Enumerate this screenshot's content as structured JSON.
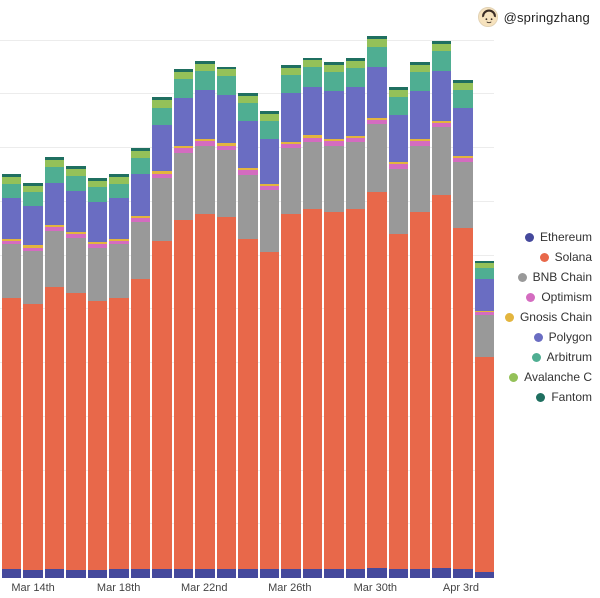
{
  "header": {
    "handle": "@springzhang"
  },
  "chart_data": {
    "type": "bar",
    "stacked": true,
    "title": "",
    "xlabel": "",
    "ylabel": "",
    "grid": true,
    "legend_position": "right",
    "ylim": [
      0,
      1.02
    ],
    "note": "y-axis has no tick labels in the source image; segment values are normalized to full chart height = 1.0",
    "categories": [
      "Mar 13",
      "Mar 14",
      "Mar 15",
      "Mar 16",
      "Mar 17",
      "Mar 18",
      "Mar 19",
      "Mar 20",
      "Mar 21",
      "Mar 22",
      "Mar 23",
      "Mar 24",
      "Mar 25",
      "Mar 26",
      "Mar 27",
      "Mar 28",
      "Mar 29",
      "Mar 30",
      "Mar 31",
      "Apr 1",
      "Apr 2",
      "Apr 3",
      "Apr 4"
    ],
    "x_tick_labels": [
      {
        "index": 1,
        "label": "Mar 14th"
      },
      {
        "index": 5,
        "label": "Mar 18th"
      },
      {
        "index": 9,
        "label": "Mar 22nd"
      },
      {
        "index": 13,
        "label": "Mar 26th"
      },
      {
        "index": 17,
        "label": "Mar 30th"
      },
      {
        "index": 21,
        "label": "Apr 3rd"
      }
    ],
    "series": [
      {
        "name": "Ethereum",
        "color": "#45499c",
        "values": [
          0.016,
          0.015,
          0.016,
          0.015,
          0.015,
          0.016,
          0.016,
          0.017,
          0.017,
          0.017,
          0.017,
          0.016,
          0.016,
          0.017,
          0.017,
          0.017,
          0.017,
          0.018,
          0.016,
          0.017,
          0.018,
          0.017,
          0.012
        ]
      },
      {
        "name": "Solana",
        "color": "#e8684a",
        "values": [
          0.505,
          0.495,
          0.525,
          0.515,
          0.5,
          0.505,
          0.54,
          0.61,
          0.65,
          0.66,
          0.655,
          0.615,
          0.59,
          0.66,
          0.67,
          0.665,
          0.67,
          0.7,
          0.625,
          0.665,
          0.695,
          0.635,
          0.4
        ]
      },
      {
        "name": "BNB Chain",
        "color": "#999999",
        "values": [
          0.1,
          0.098,
          0.105,
          0.103,
          0.1,
          0.1,
          0.106,
          0.118,
          0.125,
          0.127,
          0.125,
          0.12,
          0.116,
          0.123,
          0.124,
          0.123,
          0.124,
          0.127,
          0.121,
          0.123,
          0.126,
          0.122,
          0.078
        ]
      },
      {
        "name": "Optimism",
        "color": "#d46cc0",
        "values": [
          0.007,
          0.007,
          0.008,
          0.007,
          0.007,
          0.007,
          0.008,
          0.008,
          0.008,
          0.009,
          0.008,
          0.008,
          0.007,
          0.008,
          0.009,
          0.008,
          0.008,
          0.008,
          0.008,
          0.008,
          0.008,
          0.008,
          0.005
        ]
      },
      {
        "name": "Gnosis Chain",
        "color": "#e3b53e",
        "values": [
          0.004,
          0.004,
          0.004,
          0.004,
          0.004,
          0.004,
          0.004,
          0.004,
          0.004,
          0.004,
          0.004,
          0.004,
          0.004,
          0.004,
          0.004,
          0.004,
          0.004,
          0.004,
          0.004,
          0.004,
          0.004,
          0.004,
          0.003
        ]
      },
      {
        "name": "Polygon",
        "color": "#6a6dc2",
        "values": [
          0.075,
          0.073,
          0.078,
          0.077,
          0.074,
          0.075,
          0.079,
          0.086,
          0.09,
          0.091,
          0.09,
          0.087,
          0.085,
          0.09,
          0.091,
          0.09,
          0.091,
          0.094,
          0.088,
          0.09,
          0.093,
          0.089,
          0.058
        ]
      },
      {
        "name": "Arbitrum",
        "color": "#4fae92",
        "values": [
          0.027,
          0.026,
          0.029,
          0.028,
          0.027,
          0.027,
          0.029,
          0.033,
          0.035,
          0.036,
          0.035,
          0.034,
          0.033,
          0.035,
          0.036,
          0.035,
          0.036,
          0.037,
          0.034,
          0.035,
          0.037,
          0.034,
          0.022
        ]
      },
      {
        "name": "Avalanche C",
        "color": "#94c159",
        "values": [
          0.013,
          0.012,
          0.013,
          0.013,
          0.012,
          0.013,
          0.013,
          0.014,
          0.013,
          0.013,
          0.013,
          0.013,
          0.013,
          0.013,
          0.013,
          0.013,
          0.013,
          0.015,
          0.013,
          0.013,
          0.013,
          0.013,
          0.008
        ]
      },
      {
        "name": "Fantom",
        "color": "#1f6f60",
        "values": [
          0.005,
          0.005,
          0.005,
          0.005,
          0.005,
          0.005,
          0.005,
          0.005,
          0.005,
          0.005,
          0.005,
          0.005,
          0.005,
          0.005,
          0.005,
          0.005,
          0.005,
          0.005,
          0.005,
          0.005,
          0.005,
          0.005,
          0.004
        ]
      }
    ]
  }
}
